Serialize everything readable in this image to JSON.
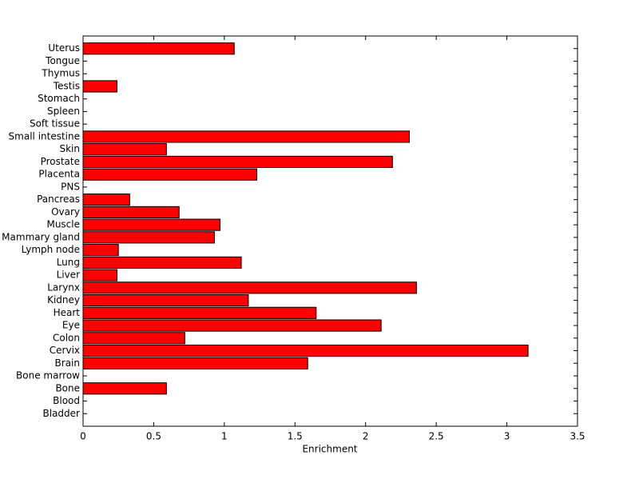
{
  "chart_data": {
    "type": "barh",
    "xlabel": "Enrichment",
    "categories": [
      "Bladder",
      "Blood",
      "Bone",
      "Bone marrow",
      "Brain",
      "Cervix",
      "Colon",
      "Eye",
      "Heart",
      "Kidney",
      "Larynx",
      "Liver",
      "Lung",
      "Lymph node",
      "Mammary gland",
      "Muscle",
      "Ovary",
      "Pancreas",
      "PNS",
      "Placenta",
      "Prostate",
      "Skin",
      "Small intestine",
      "Soft tissue",
      "Spleen",
      "Stomach",
      "Testis",
      "Thymus",
      "Tongue",
      "Uterus"
    ],
    "values": [
      0,
      0,
      0.59,
      0,
      1.59,
      3.15,
      0.72,
      2.11,
      1.65,
      1.17,
      2.36,
      0.24,
      1.12,
      0.25,
      0.93,
      0.97,
      0.68,
      0.33,
      0,
      1.23,
      2.19,
      0.59,
      2.31,
      0,
      0,
      0,
      0.24,
      0,
      0,
      1.07
    ],
    "color": "#ff0000",
    "xlim": [
      0,
      3.5
    ],
    "xticks": [
      0,
      0.5,
      1,
      1.5,
      2,
      2.5,
      3,
      3.5
    ],
    "grid": false
  }
}
